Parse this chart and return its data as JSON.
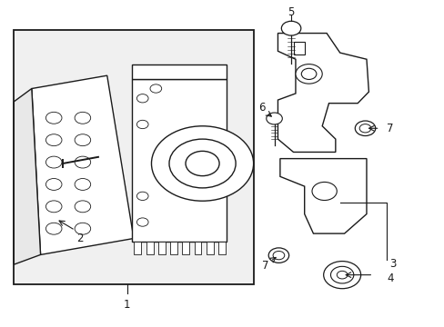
{
  "background_color": "#ffffff",
  "line_color": "#1a1a1a",
  "box_fill": "#f2f2f2",
  "figsize": [
    4.89,
    3.6
  ],
  "dpi": 100
}
